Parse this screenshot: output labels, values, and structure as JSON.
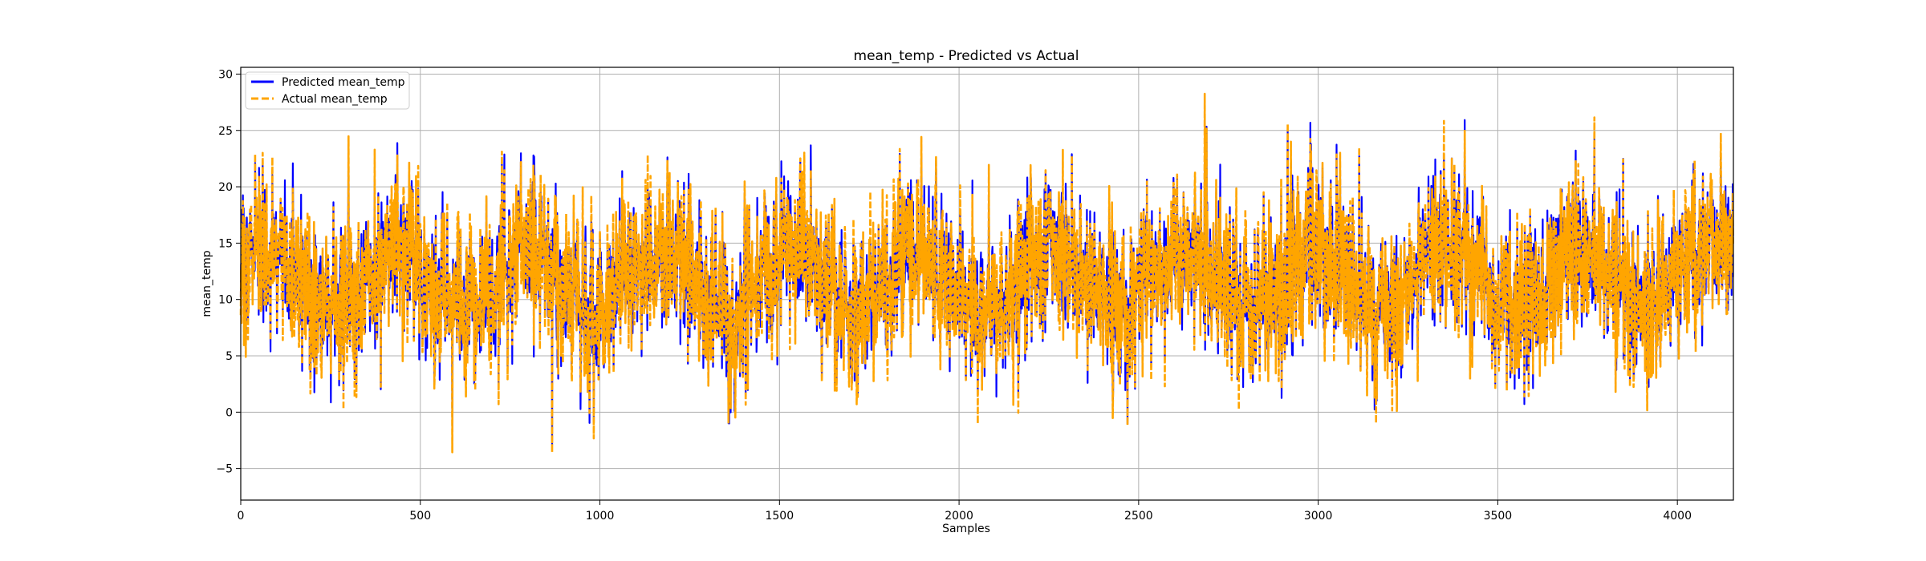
{
  "chart_data": {
    "type": "line",
    "title": "mean_temp - Predicted vs Actual",
    "xlabel": "Samples",
    "ylabel": "mean_temp",
    "xlim": [
      0,
      4156
    ],
    "ylim": [
      -7.8,
      30.6
    ],
    "x_ticks": [
      0,
      500,
      1000,
      1500,
      2000,
      2500,
      3000,
      3500,
      4000
    ],
    "y_ticks": [
      -5,
      0,
      5,
      10,
      15,
      20,
      25,
      30
    ],
    "grid": true,
    "legend_position": "upper-left",
    "sample_count": 4156,
    "series": [
      {
        "name": "Predicted mean_temp",
        "color": "#0000ff",
        "style": "solid",
        "summary": {
          "min": -6.1,
          "max": 26.2,
          "typical_range": [
            3,
            20
          ]
        }
      },
      {
        "name": "Actual mean_temp",
        "color": "#ffa500",
        "style": "dashed",
        "summary": {
          "min": -4.3,
          "max": 28.8,
          "typical_range": [
            2,
            21
          ]
        }
      }
    ]
  }
}
